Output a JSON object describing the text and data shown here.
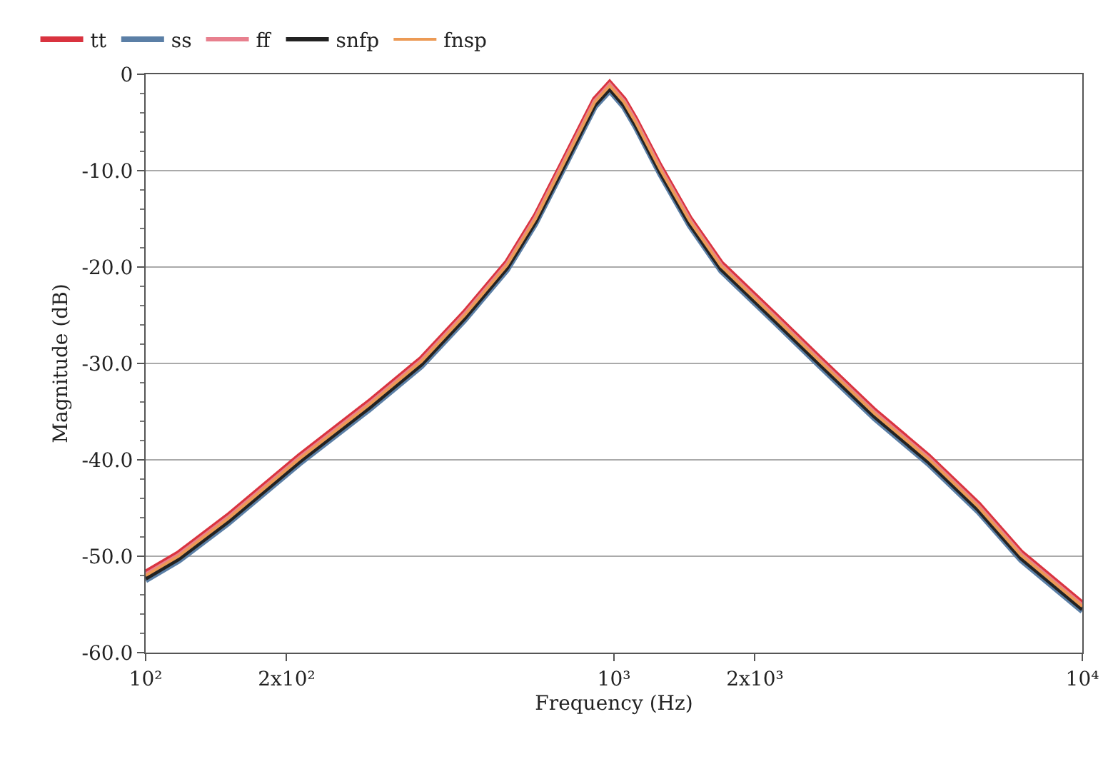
{
  "chart_data": {
    "type": "line",
    "xlabel": "Frequency (Hz)",
    "ylabel": "Magnitude (dB)",
    "log": "x",
    "x": [
      100,
      117.5,
      150,
      213,
      300,
      388,
      480,
      591,
      680,
      771,
      867,
      910,
      979,
      1050,
      1110,
      1253,
      1450,
      1693,
      2200,
      2767,
      3600,
      4688,
      6000,
      7396,
      10000
    ],
    "series": [
      {
        "name": "tt",
        "color": "#d9333f",
        "values": [
          -51.7,
          -49.7,
          -45.8,
          -39.6,
          -34,
          -29.5,
          -24.7,
          -19.5,
          -14.7,
          -9.5,
          -4.6,
          -2.6,
          -0.9,
          -2.6,
          -4.6,
          -9.5,
          -14.9,
          -19.6,
          -24.9,
          -29.6,
          -34.9,
          -39.6,
          -44.6,
          -49.6,
          -54.9
        ]
      },
      {
        "name": "ss",
        "color": "#5b7fa6",
        "values": [
          -52.5,
          -50.5,
          -46.6,
          -40.4,
          -34.8,
          -30.3,
          -25.5,
          -20.3,
          -15.5,
          -10.3,
          -5.4,
          -3.4,
          -1.7,
          -3.4,
          -5.4,
          -10.3,
          -15.7,
          -20.4,
          -25.7,
          -30.4,
          -35.7,
          -40.4,
          -45.4,
          -50.4,
          -55.7
        ]
      },
      {
        "name": "ff",
        "color": "#e8808e",
        "values": [
          -51.9,
          -49.9,
          -46,
          -39.8,
          -34.2,
          -29.7,
          -24.9,
          -19.7,
          -14.9,
          -9.7,
          -4.8,
          -2.8,
          -1.1,
          -2.8,
          -4.8,
          -9.7,
          -15.1,
          -19.8,
          -25.1,
          -29.8,
          -35.1,
          -39.8,
          -44.8,
          -49.8,
          -55.1
        ]
      },
      {
        "name": "snfp",
        "color": "#222222",
        "values": [
          -52.3,
          -50.3,
          -46.4,
          -40.2,
          -34.6,
          -30.1,
          -25.3,
          -20.1,
          -15.3,
          -10.1,
          -5.2,
          -3.2,
          -1.5,
          -3.2,
          -5.2,
          -10.1,
          -15.5,
          -20.2,
          -25.5,
          -30.2,
          -35.5,
          -40.2,
          -45.2,
          -50.2,
          -55.5
        ]
      },
      {
        "name": "fnsp",
        "color": "#ec9a55",
        "values": [
          -52,
          -50,
          -46.1,
          -39.9,
          -34.3,
          -29.8,
          -25,
          -19.8,
          -15,
          -9.8,
          -4.9,
          -2.9,
          -1.2,
          -2.9,
          -4.9,
          -9.8,
          -15.2,
          -19.9,
          -25.2,
          -29.9,
          -35.2,
          -39.9,
          -44.9,
          -49.9,
          -55.2
        ]
      }
    ],
    "xlim": [
      100,
      10000
    ],
    "xticks": [
      {
        "value": 100,
        "label": "10²"
      },
      {
        "value": 200,
        "label": "2x10²"
      },
      {
        "value": 1000,
        "label": "10³"
      },
      {
        "value": 2000,
        "label": "2x10³"
      },
      {
        "value": 10000,
        "label": "10⁴"
      }
    ],
    "ylim": [
      -60,
      0
    ],
    "yticks": [
      {
        "value": -60,
        "label": "-60.0"
      },
      {
        "value": -50,
        "label": "-50.0"
      },
      {
        "value": -40,
        "label": "-40.0"
      },
      {
        "value": -30,
        "label": "-30.0"
      },
      {
        "value": -20,
        "label": "-20.0"
      },
      {
        "value": -10,
        "label": "-10.0"
      },
      0
    ],
    "grid": "y",
    "legend": "top left",
    "line_style": "solid",
    "marker": "none"
  }
}
